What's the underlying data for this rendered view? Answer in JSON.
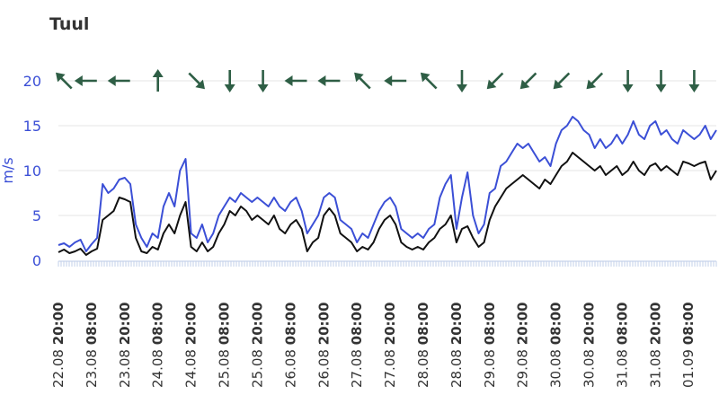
{
  "chart_data": {
    "type": "line",
    "title": "Tuul",
    "ylabel": "m/s",
    "ylim": [
      0,
      22
    ],
    "yticks": [
      0,
      5,
      10,
      15,
      20
    ],
    "grid": "horizontal",
    "x_range": [
      0,
      119
    ],
    "x_ticks": [
      {
        "x": 0,
        "date": "22.08",
        "time": "20:00"
      },
      {
        "x": 6,
        "date": "23.08",
        "time": "08:00"
      },
      {
        "x": 12,
        "date": "23.08",
        "time": "20:00"
      },
      {
        "x": 18,
        "date": "24.08",
        "time": "08:00"
      },
      {
        "x": 24,
        "date": "24.08",
        "time": "20:00"
      },
      {
        "x": 30,
        "date": "25.08",
        "time": "08:00"
      },
      {
        "x": 36,
        "date": "25.08",
        "time": "20:00"
      },
      {
        "x": 42,
        "date": "26.08",
        "time": "08:00"
      },
      {
        "x": 48,
        "date": "26.08",
        "time": "20:00"
      },
      {
        "x": 54,
        "date": "27.08",
        "time": "08:00"
      },
      {
        "x": 60,
        "date": "27.08",
        "time": "20:00"
      },
      {
        "x": 66,
        "date": "28.08",
        "time": "08:00"
      },
      {
        "x": 72,
        "date": "28.08",
        "time": "20:00"
      },
      {
        "x": 78,
        "date": "29.08",
        "time": "08:00"
      },
      {
        "x": 84,
        "date": "29.08",
        "time": "20:00"
      },
      {
        "x": 90,
        "date": "30.08",
        "time": "08:00"
      },
      {
        "x": 96,
        "date": "30.08",
        "time": "20:00"
      },
      {
        "x": 102,
        "date": "31.08",
        "time": "08:00"
      },
      {
        "x": 108,
        "date": "31.08",
        "time": "20:00"
      },
      {
        "x": 114,
        "date": "01.09",
        "time": "08:00"
      }
    ],
    "series": [
      {
        "color": "#3b4fd6",
        "points": [
          [
            0,
            1.7
          ],
          [
            1,
            1.9
          ],
          [
            2,
            1.5
          ],
          [
            3,
            2.0
          ],
          [
            4,
            2.3
          ],
          [
            5,
            1.0
          ],
          [
            6,
            1.8
          ],
          [
            7,
            2.5
          ],
          [
            8,
            8.5
          ],
          [
            9,
            7.5
          ],
          [
            10,
            8.0
          ],
          [
            11,
            9.0
          ],
          [
            12,
            9.2
          ],
          [
            13,
            8.5
          ],
          [
            14,
            4.0
          ],
          [
            15,
            2.5
          ],
          [
            16,
            1.5
          ],
          [
            17,
            3.0
          ],
          [
            18,
            2.5
          ],
          [
            19,
            6.0
          ],
          [
            20,
            7.5
          ],
          [
            21,
            6.0
          ],
          [
            22,
            10.0
          ],
          [
            23,
            11.3
          ],
          [
            24,
            3.0
          ],
          [
            25,
            2.5
          ],
          [
            26,
            4.0
          ],
          [
            27,
            2.0
          ],
          [
            28,
            3.0
          ],
          [
            29,
            5.0
          ],
          [
            30,
            6.0
          ],
          [
            31,
            7.0
          ],
          [
            32,
            6.5
          ],
          [
            33,
            7.5
          ],
          [
            34,
            7.0
          ],
          [
            35,
            6.5
          ],
          [
            36,
            7.0
          ],
          [
            37,
            6.5
          ],
          [
            38,
            6.0
          ],
          [
            39,
            7.0
          ],
          [
            40,
            6.0
          ],
          [
            41,
            5.5
          ],
          [
            42,
            6.5
          ],
          [
            43,
            7.0
          ],
          [
            44,
            5.5
          ],
          [
            45,
            3.0
          ],
          [
            46,
            4.0
          ],
          [
            47,
            5.0
          ],
          [
            48,
            7.0
          ],
          [
            49,
            7.5
          ],
          [
            50,
            7.0
          ],
          [
            51,
            4.5
          ],
          [
            52,
            4.0
          ],
          [
            53,
            3.5
          ],
          [
            54,
            2.0
          ],
          [
            55,
            3.0
          ],
          [
            56,
            2.5
          ],
          [
            57,
            4.0
          ],
          [
            58,
            5.5
          ],
          [
            59,
            6.5
          ],
          [
            60,
            7.0
          ],
          [
            61,
            6.0
          ],
          [
            62,
            3.5
          ],
          [
            63,
            3.0
          ],
          [
            64,
            2.5
          ],
          [
            65,
            3.0
          ],
          [
            66,
            2.5
          ],
          [
            67,
            3.5
          ],
          [
            68,
            4.0
          ],
          [
            69,
            7.0
          ],
          [
            70,
            8.5
          ],
          [
            71,
            9.5
          ],
          [
            72,
            3.5
          ],
          [
            73,
            7.0
          ],
          [
            74,
            9.8
          ],
          [
            75,
            5.0
          ],
          [
            76,
            3.0
          ],
          [
            77,
            4.0
          ],
          [
            78,
            7.5
          ],
          [
            79,
            8.0
          ],
          [
            80,
            10.5
          ],
          [
            81,
            11.0
          ],
          [
            82,
            12.0
          ],
          [
            83,
            13.0
          ],
          [
            84,
            12.5
          ],
          [
            85,
            13.0
          ],
          [
            86,
            12.0
          ],
          [
            87,
            11.0
          ],
          [
            88,
            11.5
          ],
          [
            89,
            10.5
          ],
          [
            90,
            13.0
          ],
          [
            91,
            14.5
          ],
          [
            92,
            15.0
          ],
          [
            93,
            16.0
          ],
          [
            94,
            15.5
          ],
          [
            95,
            14.5
          ],
          [
            96,
            14.0
          ],
          [
            97,
            12.5
          ],
          [
            98,
            13.5
          ],
          [
            99,
            12.5
          ],
          [
            100,
            13.0
          ],
          [
            101,
            14.0
          ],
          [
            102,
            13.0
          ],
          [
            103,
            14.0
          ],
          [
            104,
            15.5
          ],
          [
            105,
            14.0
          ],
          [
            106,
            13.5
          ],
          [
            107,
            15.0
          ],
          [
            108,
            15.5
          ],
          [
            109,
            14.0
          ],
          [
            110,
            14.5
          ],
          [
            111,
            13.5
          ],
          [
            112,
            13.0
          ],
          [
            113,
            14.5
          ],
          [
            114,
            14.0
          ],
          [
            115,
            13.5
          ],
          [
            116,
            14.0
          ],
          [
            117,
            15.0
          ],
          [
            118,
            13.5
          ],
          [
            119,
            14.5
          ]
        ]
      },
      {
        "color": "#111111",
        "points": [
          [
            0,
            0.9
          ],
          [
            1,
            1.2
          ],
          [
            2,
            0.8
          ],
          [
            3,
            1.0
          ],
          [
            4,
            1.3
          ],
          [
            5,
            0.6
          ],
          [
            6,
            1.0
          ],
          [
            7,
            1.3
          ],
          [
            8,
            4.5
          ],
          [
            9,
            5.0
          ],
          [
            10,
            5.5
          ],
          [
            11,
            7.0
          ],
          [
            12,
            6.8
          ],
          [
            13,
            6.5
          ],
          [
            14,
            2.5
          ],
          [
            15,
            1.0
          ],
          [
            16,
            0.8
          ],
          [
            17,
            1.5
          ],
          [
            18,
            1.2
          ],
          [
            19,
            3.0
          ],
          [
            20,
            4.0
          ],
          [
            21,
            3.0
          ],
          [
            22,
            5.0
          ],
          [
            23,
            6.5
          ],
          [
            24,
            1.5
          ],
          [
            25,
            1.0
          ],
          [
            26,
            2.0
          ],
          [
            27,
            1.0
          ],
          [
            28,
            1.5
          ],
          [
            29,
            3.0
          ],
          [
            30,
            4.0
          ],
          [
            31,
            5.5
          ],
          [
            32,
            5.0
          ],
          [
            33,
            6.0
          ],
          [
            34,
            5.5
          ],
          [
            35,
            4.5
          ],
          [
            36,
            5.0
          ],
          [
            37,
            4.5
          ],
          [
            38,
            4.0
          ],
          [
            39,
            5.0
          ],
          [
            40,
            3.5
          ],
          [
            41,
            3.0
          ],
          [
            42,
            4.0
          ],
          [
            43,
            4.5
          ],
          [
            44,
            3.5
          ],
          [
            45,
            1.0
          ],
          [
            46,
            2.0
          ],
          [
            47,
            2.5
          ],
          [
            48,
            5.0
          ],
          [
            49,
            5.8
          ],
          [
            50,
            5.0
          ],
          [
            51,
            3.0
          ],
          [
            52,
            2.5
          ],
          [
            53,
            2.0
          ],
          [
            54,
            1.0
          ],
          [
            55,
            1.5
          ],
          [
            56,
            1.2
          ],
          [
            57,
            2.0
          ],
          [
            58,
            3.5
          ],
          [
            59,
            4.5
          ],
          [
            60,
            5.0
          ],
          [
            61,
            4.0
          ],
          [
            62,
            2.0
          ],
          [
            63,
            1.5
          ],
          [
            64,
            1.2
          ],
          [
            65,
            1.5
          ],
          [
            66,
            1.2
          ],
          [
            67,
            2.0
          ],
          [
            68,
            2.5
          ],
          [
            69,
            3.5
          ],
          [
            70,
            4.0
          ],
          [
            71,
            5.0
          ],
          [
            72,
            2.0
          ],
          [
            73,
            3.5
          ],
          [
            74,
            3.8
          ],
          [
            75,
            2.5
          ],
          [
            76,
            1.5
          ],
          [
            77,
            2.0
          ],
          [
            78,
            4.5
          ],
          [
            79,
            6.0
          ],
          [
            80,
            7.0
          ],
          [
            81,
            8.0
          ],
          [
            82,
            8.5
          ],
          [
            83,
            9.0
          ],
          [
            84,
            9.5
          ],
          [
            85,
            9.0
          ],
          [
            86,
            8.5
          ],
          [
            87,
            8.0
          ],
          [
            88,
            9.0
          ],
          [
            89,
            8.5
          ],
          [
            90,
            9.5
          ],
          [
            91,
            10.5
          ],
          [
            92,
            11.0
          ],
          [
            93,
            12.0
          ],
          [
            94,
            11.5
          ],
          [
            95,
            11.0
          ],
          [
            96,
            10.5
          ],
          [
            97,
            10.0
          ],
          [
            98,
            10.5
          ],
          [
            99,
            9.5
          ],
          [
            100,
            10.0
          ],
          [
            101,
            10.5
          ],
          [
            102,
            9.5
          ],
          [
            103,
            10.0
          ],
          [
            104,
            11.0
          ],
          [
            105,
            10.0
          ],
          [
            106,
            9.5
          ],
          [
            107,
            10.5
          ],
          [
            108,
            10.8
          ],
          [
            109,
            10.0
          ],
          [
            110,
            10.5
          ],
          [
            111,
            10.0
          ],
          [
            112,
            9.5
          ],
          [
            113,
            11.0
          ],
          [
            114,
            10.8
          ],
          [
            115,
            10.5
          ],
          [
            116,
            10.8
          ],
          [
            117,
            11.0
          ],
          [
            118,
            9.0
          ],
          [
            119,
            10.0
          ]
        ]
      }
    ],
    "direction_arrows": {
      "color": "#2e5e45",
      "y": 20,
      "items": [
        {
          "x": 1,
          "angle": 315
        },
        {
          "x": 5,
          "angle": 270
        },
        {
          "x": 11,
          "angle": 270
        },
        {
          "x": 18,
          "angle": 0
        },
        {
          "x": 25,
          "angle": 135
        },
        {
          "x": 31,
          "angle": 180
        },
        {
          "x": 37,
          "angle": 180
        },
        {
          "x": 43,
          "angle": 270
        },
        {
          "x": 49,
          "angle": 270
        },
        {
          "x": 55,
          "angle": 315
        },
        {
          "x": 61,
          "angle": 270
        },
        {
          "x": 67,
          "angle": 315
        },
        {
          "x": 73,
          "angle": 180
        },
        {
          "x": 79,
          "angle": 225
        },
        {
          "x": 85,
          "angle": 225
        },
        {
          "x": 91,
          "angle": 225
        },
        {
          "x": 97,
          "angle": 225
        },
        {
          "x": 103,
          "angle": 180
        },
        {
          "x": 109,
          "angle": 180
        },
        {
          "x": 115,
          "angle": 180
        }
      ]
    }
  }
}
